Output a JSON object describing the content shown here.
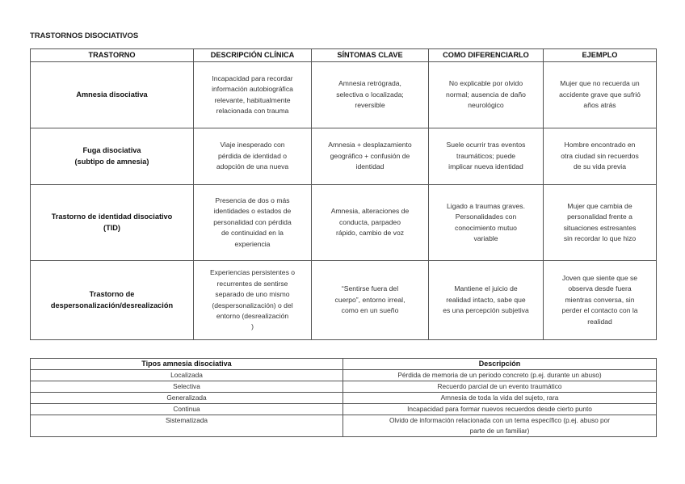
{
  "title": "TRASTORNOS DISOCIATIVOS",
  "main_table": {
    "headers": [
      "TRASTORNO",
      "DESCRIPCIÓN CLÍNICA",
      "SÍNTOMAS CLAVE",
      "COMO DIFERENCIARLO",
      "EJEMPLO"
    ],
    "rows": [
      [
        "Amnesia disociativa",
        "Incapacidad para recordar\ninformación autobiográfica\nrelevante, habitualmente\nrelacionada con trauma",
        "Amnesia retrógrada,\nselectiva o localizada;\nreversible",
        "No explicable por olvido\nnormal; ausencia de daño\nneurológico",
        "Mujer que no recuerda un\naccidente grave que sufrió\naños atrás"
      ],
      [
        "Fuga disociativa\n(subtipo de amnesia)",
        "Viaje inesperado con\npérdida de identidad o\nadopción de una nueva",
        "Amnesia + desplazamiento\ngeográfico + confusión de\nidentidad",
        "Suele ocurrir tras eventos\ntraumáticos; puede\nimplicar nueva identidad",
        "Hombre encontrado en\notra ciudad sin recuerdos\nde su vida previa"
      ],
      [
        "Trastorno de identidad disociativo\n(TID)",
        "Presencia de dos o más\nidentidades o estados de\npersonalidad con pérdida\nde continuidad en la\nexperiencia",
        "Amnesia, alteraciones de\nconducta, parpadeo\nrápido, cambio de voz",
        "Ligado a traumas graves.\nPersonalidades con\nconocimiento mutuo\nvariable",
        "Mujer que cambia de\npersonalidad frente a\nsituaciones estresantes\nsin recordar lo que hizo"
      ],
      [
        "Trastorno de\ndespersonalización/desrealización",
        "Experiencias persistentes o\nrecurrentes de sentirse\nseparado de uno mismo\n(despersonalización) o del\nentorno (desrealización\n)",
        "“Sentirse fuera del\ncuerpo”, entorno irreal,\ncomo en un sueño",
        "Mantiene el juicio de\nrealidad intacto, sabe que\nes una percepción subjetiva",
        "Joven que siente que se\nobserva desde fuera\nmientras conversa, sin\nperder el contacto con la\nrealidad"
      ]
    ]
  },
  "types_table": {
    "headers": [
      "Tipos amnesia disociativa",
      "Descripción"
    ],
    "rows": [
      [
        "Localizada",
        "Pérdida de memoria de un periodo concreto (p.ej. durante un abuso)"
      ],
      [
        "Selectiva",
        "Recuerdo parcial de un evento traumático"
      ],
      [
        "Generalizada",
        "Amnesia de toda la vida del sujeto, rara"
      ],
      [
        "Continua",
        "Incapacidad para formar nuevos recuerdos desde cierto punto"
      ],
      [
        "Sistematizada",
        "Olvido de información relacionada con un tema específico (p.ej. abuso por\nparte de un familiar)"
      ]
    ]
  }
}
